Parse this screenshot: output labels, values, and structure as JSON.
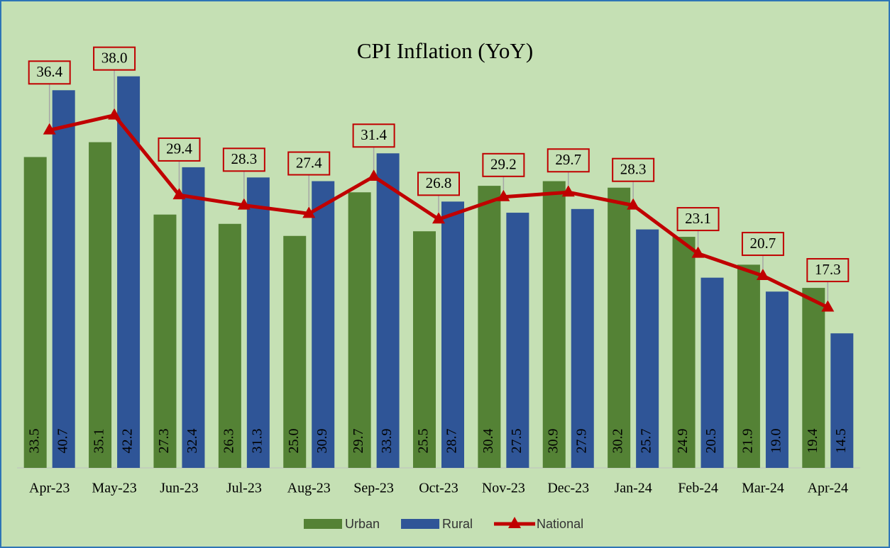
{
  "chart_data": {
    "type": "bar",
    "title": "CPI Inflation (YoY)",
    "categories": [
      "Apr-23",
      "May-23",
      "Jun-23",
      "Jul-23",
      "Aug-23",
      "Sep-23",
      "Oct-23",
      "Nov-23",
      "Dec-23",
      "Jan-24",
      "Feb-24",
      "Mar-24",
      "Apr-24"
    ],
    "series": [
      {
        "name": "Urban",
        "color": "#548235",
        "type": "bar",
        "values": [
          33.5,
          35.1,
          27.3,
          26.3,
          25.0,
          29.7,
          25.5,
          30.4,
          30.9,
          30.2,
          24.9,
          21.9,
          19.4
        ],
        "value_labels": [
          "33.5",
          "35.1",
          "27.3",
          "26.3",
          "25.0",
          "29.7",
          "25.5",
          "30.4",
          "30.9",
          "30.2",
          "24.9",
          "21.9",
          "19.4"
        ]
      },
      {
        "name": "Rural",
        "color": "#2f5597",
        "type": "bar",
        "values": [
          40.7,
          42.2,
          32.4,
          31.3,
          30.9,
          33.9,
          28.7,
          27.5,
          27.9,
          25.7,
          20.5,
          19.0,
          14.5
        ],
        "value_labels": [
          "40.7",
          "42.2",
          "32.4",
          "31.3",
          "30.9",
          "33.9",
          "28.7",
          "27.5",
          "27.9",
          "25.7",
          "20.5",
          "19.0",
          "14.5"
        ]
      },
      {
        "name": "National",
        "color": "#c00000",
        "type": "line",
        "values": [
          36.4,
          38.0,
          29.4,
          28.3,
          27.4,
          31.4,
          26.8,
          29.2,
          29.7,
          28.3,
          23.1,
          20.7,
          17.3
        ],
        "value_labels": [
          "36.4",
          "38.0",
          "29.4",
          "28.3",
          "27.4",
          "31.4",
          "26.8",
          "29.2",
          "29.7",
          "28.3",
          "23.1",
          "20.7",
          "17.3"
        ]
      }
    ],
    "ylim": [
      0,
      45
    ],
    "legend": "bottom"
  }
}
